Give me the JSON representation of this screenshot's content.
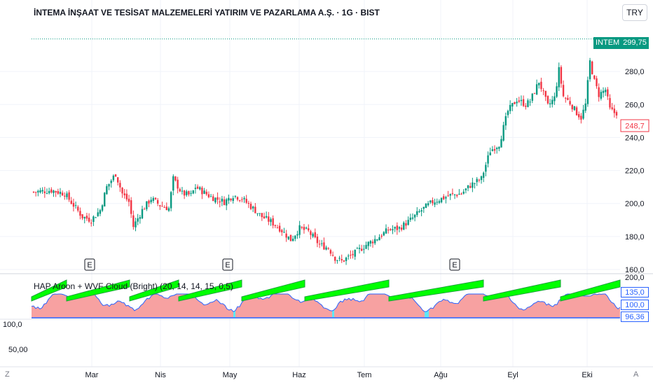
{
  "header": {
    "title": "İNTEMA İNŞAAT VE TESİSAT MALZEMELERİ YATIRIM VE PAZARLAMA A.Ş. · 1G · BIST",
    "currency": "TRY"
  },
  "price_badges": {
    "ticker": "INTEM",
    "last": "299,75",
    "low_marker": "248,7"
  },
  "indicator": {
    "label": "HAP Aroon + WVF Cloud (Bright) (20, 14, 14, 15, 0,5)",
    "values": [
      "135,0",
      "100,0",
      "96,36"
    ]
  },
  "lower_axis_labels": [
    "100,0",
    "50,00"
  ],
  "corner_labels": {
    "left": "Z",
    "right": "A"
  },
  "colors": {
    "up": "#089981",
    "down": "#f23645",
    "green_cloud": "#00ff00",
    "salmon": "#f7a1a1",
    "cyan": "#5ee8f5",
    "line": "#2962ff"
  },
  "chart_data": {
    "type": "candlestick",
    "price_axis": {
      "min": 160,
      "max": 300,
      "ticks": [
        "300,0",
        "280,0",
        "260,0",
        "240,0",
        "220,0",
        "200,0",
        "180,0",
        "160,0"
      ]
    },
    "indicator_axis_ticks": [
      "200,0"
    ],
    "x_tick_labels": [
      "Mar",
      "Nis",
      "May",
      "Haz",
      "Tem",
      "Ağu",
      "Eyl",
      "Eki"
    ],
    "earnings_markers": [
      "E",
      "E",
      "E"
    ],
    "reference_line": 299.75,
    "close_path": [
      [
        0,
        207
      ],
      [
        8,
        208
      ],
      [
        14,
        206
      ],
      [
        22,
        192
      ],
      [
        26,
        190
      ],
      [
        30,
        196
      ],
      [
        33,
        210
      ],
      [
        37,
        218
      ],
      [
        40,
        206
      ],
      [
        43,
        201
      ],
      [
        45,
        186
      ],
      [
        49,
        196
      ],
      [
        53,
        203
      ],
      [
        57,
        199
      ],
      [
        61,
        197
      ],
      [
        63,
        215
      ],
      [
        67,
        206
      ],
      [
        71,
        205
      ],
      [
        73,
        210
      ],
      [
        80,
        204
      ],
      [
        86,
        201
      ],
      [
        90,
        205
      ],
      [
        94,
        203
      ],
      [
        99,
        197
      ],
      [
        103,
        192
      ],
      [
        107,
        189
      ],
      [
        111,
        185
      ],
      [
        116,
        178
      ],
      [
        120,
        185
      ],
      [
        124,
        183
      ],
      [
        129,
        175
      ],
      [
        133,
        173
      ],
      [
        136,
        167
      ],
      [
        139,
        165
      ],
      [
        145,
        170
      ],
      [
        150,
        175
      ],
      [
        155,
        179
      ],
      [
        160,
        184
      ],
      [
        165,
        185
      ],
      [
        170,
        190
      ],
      [
        175,
        196
      ],
      [
        180,
        201
      ],
      [
        184,
        203
      ],
      [
        188,
        205
      ],
      [
        193,
        206
      ],
      [
        197,
        211
      ],
      [
        202,
        215
      ],
      [
        206,
        232
      ],
      [
        210,
        236
      ],
      [
        214,
        256
      ],
      [
        218,
        263
      ],
      [
        222,
        260
      ],
      [
        224,
        262
      ],
      [
        228,
        274
      ],
      [
        232,
        259
      ],
      [
        235,
        264
      ],
      [
        237,
        281
      ],
      [
        239,
        265
      ],
      [
        242,
        261
      ],
      [
        245,
        255
      ],
      [
        247,
        252
      ],
      [
        249,
        260
      ],
      [
        251,
        286
      ],
      [
        253,
        274
      ],
      [
        255,
        266
      ],
      [
        258,
        269
      ],
      [
        260,
        257
      ],
      [
        262,
        255
      ]
    ],
    "series": [
      {
        "name": "",
        "values": []
      }
    ]
  }
}
